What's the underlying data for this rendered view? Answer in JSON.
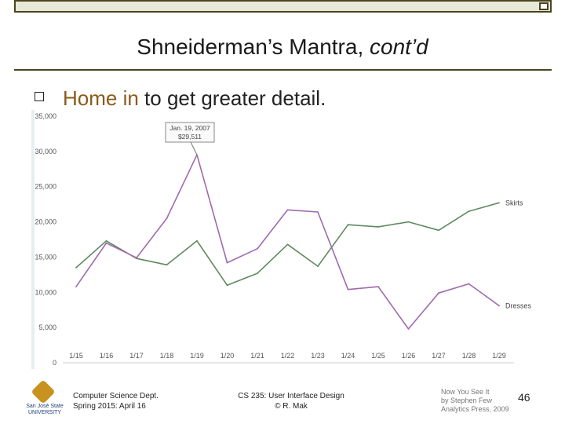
{
  "slide": {
    "title_main": "Shneiderman’s Mantra, ",
    "title_italic": "cont’d",
    "bullet_highlight": "Home in",
    "bullet_rest": " to get greater detail.",
    "page_number": "46"
  },
  "footer": {
    "left_line1": "Computer Science Dept.",
    "left_line2": "Spring 2015: April 16",
    "center_line1": "CS 235: User Interface Design",
    "center_line2": "© R. Mak",
    "credit_line1": "Now You See It",
    "credit_line2": "by Stephen Few",
    "credit_line3": "Analytics Press, 2009",
    "logo_line1": "San José State",
    "logo_line2": "UNIVERSITY"
  },
  "colors": {
    "skirts": "#5e8a60",
    "dresses": "#a06aae",
    "frame": "#4a4420"
  },
  "chart_data": {
    "type": "line",
    "categories": [
      "1/15",
      "1/16",
      "1/17",
      "1/18",
      "1/19",
      "1/20",
      "1/21",
      "1/22",
      "1/23",
      "1/24",
      "1/25",
      "1/26",
      "1/27",
      "1/28",
      "1/29"
    ],
    "yticks": [
      "0",
      "5,000",
      "10,000",
      "15,000",
      "20,000",
      "25,000",
      "30,000",
      "35,000"
    ],
    "ylim": [
      0,
      35000
    ],
    "series": [
      {
        "name": "Skirts",
        "values": [
          13500,
          17300,
          14800,
          13900,
          17300,
          11000,
          12700,
          16800,
          13700,
          19600,
          19300,
          20000,
          18800,
          21500,
          22700
        ]
      },
      {
        "name": "Dresses",
        "values": [
          10800,
          17000,
          14900,
          20500,
          29511,
          14200,
          16200,
          21700,
          21400,
          10400,
          10800,
          4800,
          9900,
          11200,
          8100
        ]
      }
    ],
    "annotation": {
      "line1": "Jan. 19, 2007",
      "line2": "$29,511",
      "category": "1/19",
      "value": 29511
    },
    "grid": false,
    "legend": "end-of-line labels"
  }
}
